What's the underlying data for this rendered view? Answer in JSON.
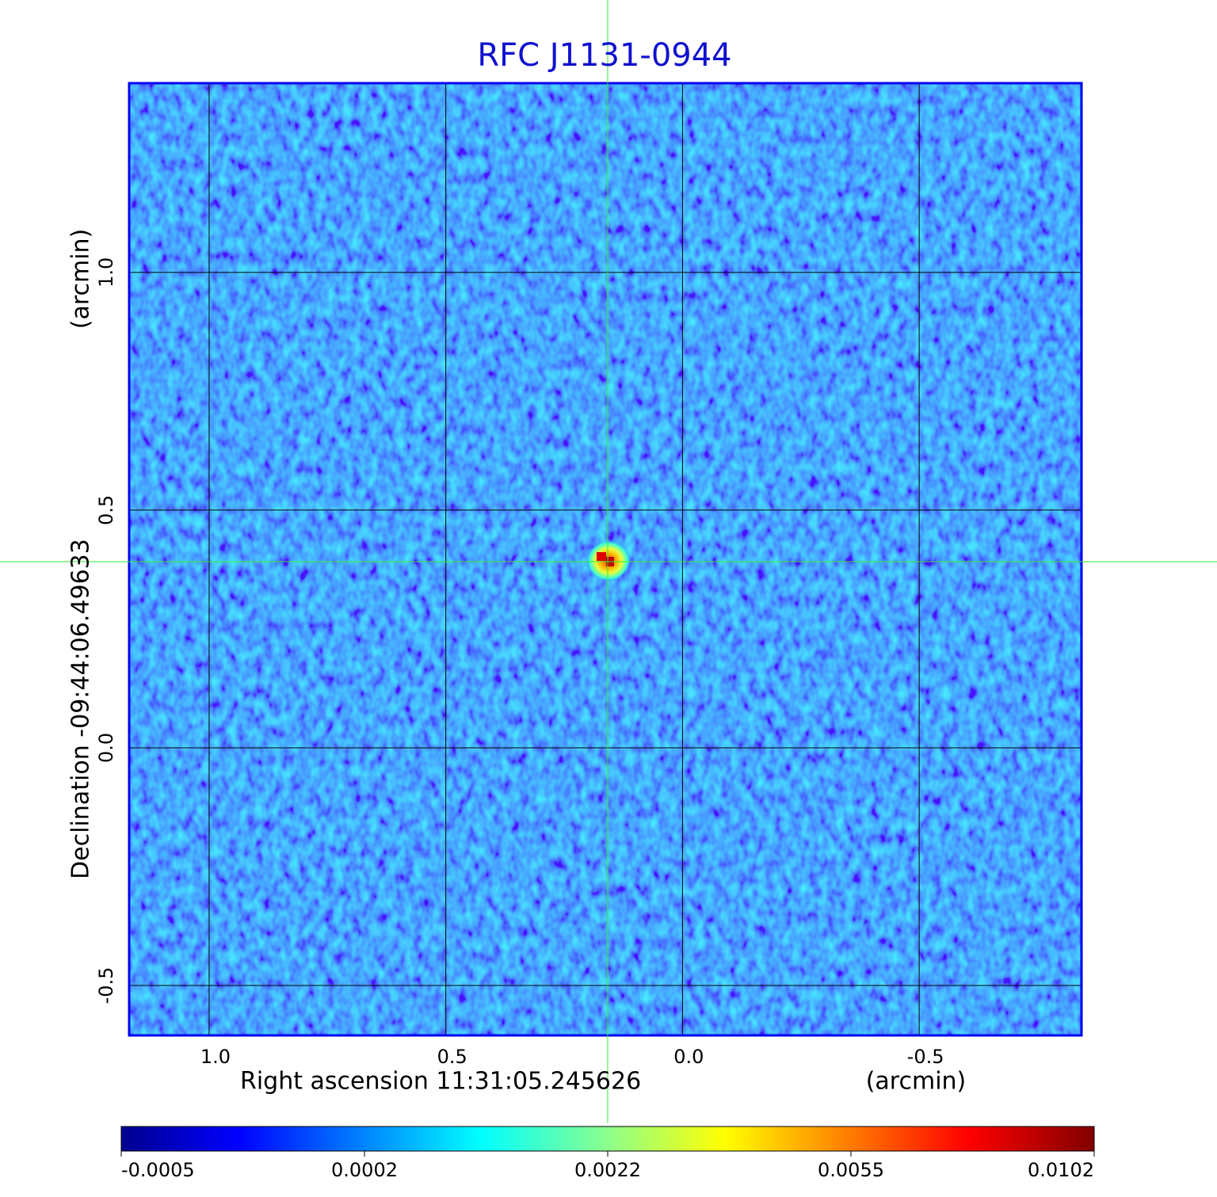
{
  "chart_data": {
    "type": "image",
    "title": "RFC J1131-0944",
    "xlabel": "Right ascension  11:31:05.245626",
    "xunit": "(arcmin)",
    "ylabel": "Declination  -09:44:06.49633",
    "yunit": "(arcmin)",
    "xlim": [
      1.169,
      -0.843
    ],
    "ylim": [
      -0.605,
      1.398
    ],
    "xticks": [
      {
        "value": 1.0,
        "label": "1.0"
      },
      0.5,
      {
        "value": 0.0,
        "label": "0.0"
      },
      -0.5
    ],
    "yticks": [
      -0.5,
      {
        "value": 0.0,
        "label": "0.0"
      },
      0.5,
      {
        "value": 1.0,
        "label": "1.0"
      }
    ],
    "grid": true,
    "colorbar_ticks": [
      -0.0005,
      0.0002,
      0.0022,
      0.0055,
      0.0102
    ]
  }
}
